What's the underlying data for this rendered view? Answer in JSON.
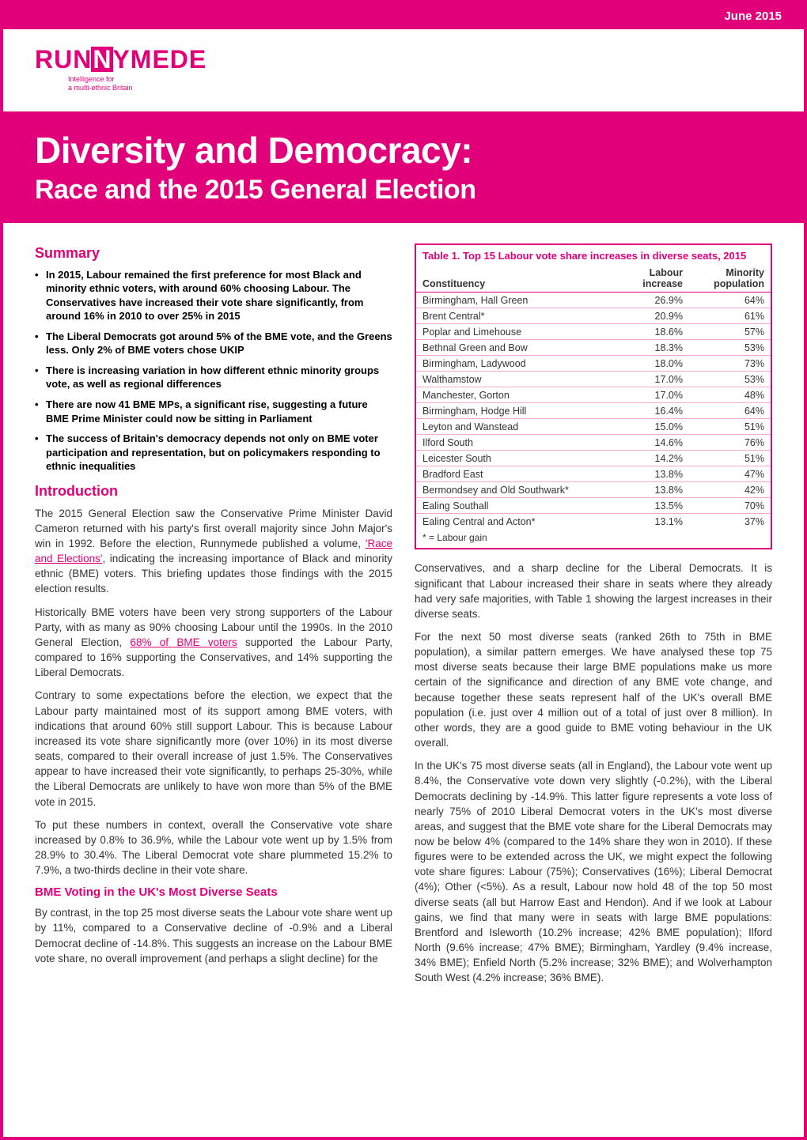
{
  "meta": {
    "date": "June 2015",
    "brand_color": "#e2007a",
    "logo": {
      "text_left": "RUN",
      "text_block": "N",
      "text_right": "YMEDE",
      "tagline1": "Intelligence for",
      "tagline2": "a multi-ethnic Britain"
    }
  },
  "title": {
    "line1": "Diversity and Democracy:",
    "line2": "Race and the 2015 General Election"
  },
  "summary": {
    "heading": "Summary",
    "bullets": [
      "In 2015, Labour remained the first preference for most Black and minority ethnic voters, with around 60% choosing Labour. The Conservatives have increased their vote share significantly, from around 16% in 2010 to over 25% in 2015",
      "The Liberal Democrats got around 5% of the BME vote, and the Greens less. Only 2% of BME voters chose UKIP",
      "There is increasing variation in how different ethnic minority groups vote, as well as regional differences",
      "There are now 41 BME MPs, a significant rise, suggesting a future BME Prime Minister could now be sitting in Parliament",
      "The success of Britain's democracy depends not only on BME voter participation and representation, but on policymakers responding to ethnic inequalities"
    ]
  },
  "intro": {
    "heading": "Introduction",
    "link1_text": "'Race and Elections'",
    "link2_text": "68% of BME voters",
    "p1a": "The 2015 General Election saw the Conservative Prime Minister David Cameron returned with his party's first overall majority since John Major's win in 1992. Before the election, Runnymede published a volume, ",
    "p1b": ", indicating the increasing importance of Black and minority ethnic (BME) voters. This briefing updates those findings with the 2015 election results.",
    "p2a": "Historically BME voters have been very strong supporters of the Labour Party, with as many as 90% choosing Labour until the 1990s. In the 2010 General Election, ",
    "p2b": " supported the Labour Party, compared to 16% supporting the Conservatives, and 14% supporting the Liberal Democrats.",
    "p3": "Contrary to some expectations before the election, we expect that the Labour party maintained most of its support among BME voters, with indications that around 60% still support Labour. This is because Labour increased its vote share significantly more (over 10%) in its most diverse seats, compared to their overall increase of just 1.5%. The Conservatives appear to have increased their vote significantly, to perhaps 25-30%, while the Liberal Democrats are unlikely to have won more than 5% of the BME vote in 2015.",
    "p4": "To put these numbers in context, overall the Conservative vote share increased by 0.8% to 36.9%, while the Labour vote went up by 1.5% from 28.9% to 30.4%. The Liberal Democrat vote share plummeted 15.2% to 7.9%, a two-thirds decline in their vote share."
  },
  "bme_section": {
    "heading": "BME Voting in the UK's Most Diverse Seats",
    "p1": "By contrast, in the top 25 most diverse seats the Labour vote share went up by 11%, compared to a Conservative decline of -0.9% and a Liberal Democrat decline of -14.8%. This suggests an increase on the Labour BME vote share, no overall improvement (and perhaps a slight decline) for the"
  },
  "right_col": {
    "p1": "Conservatives, and a sharp decline for the Liberal Democrats. It is significant that Labour increased their share in seats where they already had very safe majorities, with Table 1 showing the largest increases in their diverse seats.",
    "p2": "For the next 50 most diverse seats (ranked 26th to 75th in BME population), a similar pattern emerges. We have analysed these top 75 most diverse seats because their large BME populations make us more certain of the significance and direction of any BME vote change, and because together these seats represent half of the UK's overall BME population (i.e. just over 4 million out of a total of just over 8 million). In other words, they are a good guide to BME voting behaviour in the UK overall.",
    "p3": "In the UK's 75 most diverse seats (all in England), the Labour vote went up 8.4%, the Conservative vote down very slightly (-0.2%), with the Liberal Democrats declining by -14.9%. This latter figure represents a vote loss of nearly 75% of 2010 Liberal Democrat voters in the UK's most diverse areas, and suggest that the BME vote share for the Liberal Democrats may now be below 4% (compared to the 14% share they won in 2010). If these figures were to be extended across the UK, we might expect the following vote share figures: Labour (75%); Conservatives (16%); Liberal Democrat (4%); Other (<5%). As a result, Labour now hold 48 of the top 50 most diverse seats (all but Harrow East and Hendon). And if we look at Labour gains, we find that many were in seats with large BME populations: Brentford and Isleworth (10.2% increase; 42% BME population); Ilford North (9.6% increase; 47% BME); Birmingham, Yardley (9.4% increase, 34% BME); Enfield North (5.2% increase; 32% BME); and Wolverhampton South West (4.2% increase; 36% BME)."
  },
  "table1": {
    "caption": "Table 1. Top 15 Labour vote share increases in diverse seats, 2015",
    "columns": [
      "Constituency",
      "Labour increase",
      "Minority population"
    ],
    "col_align": [
      "left",
      "right",
      "right"
    ],
    "rows": [
      [
        "Birmingham, Hall Green",
        "26.9%",
        "64%"
      ],
      [
        "Brent Central*",
        "20.9%",
        "61%"
      ],
      [
        "Poplar and Limehouse",
        "18.6%",
        "57%"
      ],
      [
        "Bethnal Green and Bow",
        "18.3%",
        "53%"
      ],
      [
        "Birmingham, Ladywood",
        "18.0%",
        "73%"
      ],
      [
        "Walthamstow",
        "17.0%",
        "53%"
      ],
      [
        "Manchester, Gorton",
        "17.0%",
        "48%"
      ],
      [
        "Birmingham, Hodge Hill",
        "16.4%",
        "64%"
      ],
      [
        "Leyton and Wanstead",
        "15.0%",
        "51%"
      ],
      [
        "Ilford South",
        "14.6%",
        "76%"
      ],
      [
        "Leicester South",
        "14.2%",
        "51%"
      ],
      [
        "Bradford East",
        "13.8%",
        "47%"
      ],
      [
        "Bermondsey and Old Southwark*",
        "13.8%",
        "42%"
      ],
      [
        "Ealing Southall",
        "13.5%",
        "70%"
      ],
      [
        "Ealing Central and Acton*",
        "13.1%",
        "37%"
      ]
    ],
    "note": "* = Labour gain",
    "border_color": "#e2007a",
    "header_border": "#e2007a",
    "row_border": "#f3a8cf",
    "caption_color": "#e2007a"
  }
}
